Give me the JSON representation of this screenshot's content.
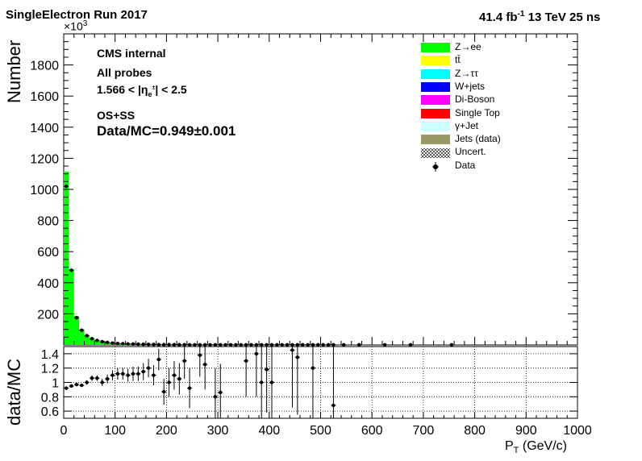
{
  "header": {
    "left": "SingleElectron Run 2017",
    "lumi": "41.4 fb",
    "lumi_exp": "-1",
    "energy": "13 TeV 25 ns"
  },
  "labels": {
    "line1": "CMS internal",
    "line2": "All probes",
    "line3": "1.566 < |η",
    "line3_sub": "e",
    "line3_sup": "±",
    "line3_end": "| < 2.5",
    "line4": "OS+SS",
    "line5": "Data/MC=0.949±0.001"
  },
  "legend": [
    {
      "label": "Z→ee",
      "color": "#00ff00",
      "style": "fill"
    },
    {
      "label": "tt̄",
      "color": "#ffff00",
      "style": "fill"
    },
    {
      "label": "Z→ττ",
      "color": "#00ffff",
      "style": "fill"
    },
    {
      "label": "W+jets",
      "color": "#0000ff",
      "style": "fill"
    },
    {
      "label": "Di-Boson",
      "color": "#ff00ff",
      "style": "fill"
    },
    {
      "label": "Single Top",
      "color": "#ff0000",
      "style": "fill"
    },
    {
      "label": "γ+Jet",
      "color": "#ccffff",
      "style": "fill"
    },
    {
      "label": "Jets (data)",
      "color": "#999966",
      "style": "fill"
    },
    {
      "label": "Uncert.",
      "color": "#000000",
      "style": "hatch"
    },
    {
      "label": "Data",
      "color": "#000000",
      "style": "marker"
    }
  ],
  "axes": {
    "ytitle_top": "Number",
    "ytitle_bottom": "data/MC",
    "xtitle": "P",
    "xtitle_sub": "T",
    "xtitle_unit": "(GeV/c)",
    "exponent": "×10",
    "exponent_sup": "3"
  },
  "chart_data": [
    {
      "type": "bar",
      "panel": "main",
      "ylabel": "Number",
      "ylim": [
        0,
        2000
      ],
      "xlim": [
        0,
        1000
      ],
      "y_ticks": [
        200,
        400,
        600,
        800,
        1000,
        1200,
        1400,
        1600,
        1800
      ],
      "bin_width": 10,
      "mc_stack": {
        "name": "Z→ee",
        "x_edges_start": 0,
        "values": [
          1115,
          488,
          185,
          100,
          62,
          42,
          30,
          22,
          17,
          13,
          10,
          8,
          7,
          6,
          5,
          4,
          3.5,
          3,
          2.5,
          2.2,
          2,
          1.8,
          1.6,
          1.4,
          1.2
        ]
      },
      "data_points": {
        "x": [
          5,
          15,
          25,
          35,
          45,
          55,
          65,
          75,
          85,
          95,
          105,
          115,
          125,
          135,
          145,
          155,
          165,
          175,
          185,
          195,
          205,
          215,
          225,
          235,
          245,
          255,
          265,
          275,
          285,
          295,
          305,
          315,
          325,
          335,
          345,
          355,
          365,
          375,
          385,
          395,
          405,
          415,
          425,
          435,
          445,
          455,
          465,
          475,
          485,
          495,
          505,
          515,
          525,
          545,
          575,
          625,
          675,
          755
        ],
        "y": [
          1020,
          480,
          175,
          95,
          60,
          40,
          29,
          21,
          16,
          12,
          9.5,
          8,
          7,
          6,
          5,
          4,
          3.5,
          3,
          2.5,
          2.2,
          2,
          1.8,
          1.6,
          1.4,
          1.2,
          1,
          1,
          1,
          1,
          1,
          1,
          1,
          1,
          1,
          1,
          1,
          1,
          1,
          1,
          1,
          1,
          1,
          1,
          1,
          1,
          1,
          1,
          1,
          1,
          1,
          1,
          1,
          1,
          1,
          1,
          1,
          1,
          1
        ]
      }
    },
    {
      "type": "scatter",
      "panel": "ratio",
      "ylabel": "data/MC",
      "ylim": [
        0.5,
        1.5
      ],
      "xlim": [
        0,
        1000
      ],
      "y_ticks": [
        0.6,
        0.8,
        1,
        1.2,
        1.4
      ],
      "x_ticks": [
        0,
        100,
        200,
        300,
        400,
        500,
        600,
        700,
        800,
        900,
        1000
      ],
      "x": [
        5,
        15,
        25,
        35,
        45,
        55,
        65,
        75,
        85,
        95,
        105,
        115,
        125,
        135,
        145,
        155,
        165,
        175,
        185,
        195,
        205,
        215,
        225,
        235,
        245,
        265,
        275,
        295,
        305,
        355,
        375,
        385,
        395,
        405,
        445,
        455,
        485,
        525
      ],
      "y": [
        0.92,
        0.95,
        0.97,
        0.96,
        1.0,
        1.06,
        1.06,
        1.0,
        1.05,
        1.1,
        1.12,
        1.12,
        1.1,
        1.12,
        1.12,
        1.15,
        1.2,
        1.1,
        1.32,
        0.87,
        1.0,
        1.1,
        1.05,
        1.3,
        0.92,
        1.38,
        1.25,
        0.8,
        0.86,
        1.3,
        1.4,
        1.0,
        1.18,
        1.0,
        1.45,
        1.35,
        1.2,
        0.68
      ],
      "yerr": [
        0.01,
        0.01,
        0.02,
        0.02,
        0.03,
        0.04,
        0.04,
        0.05,
        0.06,
        0.07,
        0.08,
        0.08,
        0.09,
        0.1,
        0.1,
        0.12,
        0.13,
        0.14,
        0.15,
        0.18,
        0.2,
        0.2,
        0.22,
        0.25,
        0.28,
        0.3,
        0.35,
        0.4,
        0.4,
        0.5,
        0.6,
        0.6,
        0.6,
        0.6,
        0.8,
        0.8,
        0.8,
        0.9
      ]
    }
  ]
}
